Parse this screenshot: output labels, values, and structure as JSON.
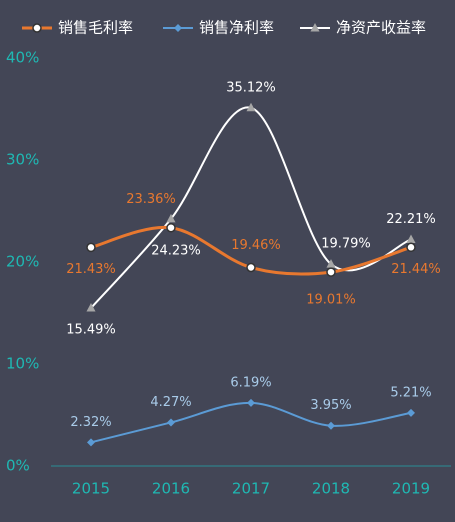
{
  "chart_data": {
    "type": "line",
    "categories": [
      "2015",
      "2016",
      "2017",
      "2018",
      "2019"
    ],
    "series": [
      {
        "name": "销售毛利率",
        "color": "#e8782f",
        "values": [
          21.43,
          23.36,
          19.46,
          19.01,
          21.44
        ],
        "value_labels": [
          "21.43%",
          "23.36%",
          "19.46%",
          "19.01%",
          "21.44%"
        ]
      },
      {
        "name": "销售净利率",
        "color": "#5b9bd5",
        "values": [
          2.32,
          4.27,
          6.19,
          3.95,
          5.21
        ],
        "value_labels": [
          "2.32%",
          "4.27%",
          "6.19%",
          "3.95%",
          "5.21%"
        ]
      },
      {
        "name": "净资产收益率",
        "color": "#ffffff",
        "values": [
          15.49,
          24.23,
          35.12,
          19.79,
          22.21
        ],
        "value_labels": [
          "15.49%",
          "24.23%",
          "35.12%",
          "19.79%",
          "22.21%"
        ]
      }
    ],
    "ylim": [
      0,
      40
    ],
    "yticks": [
      {
        "value": 0,
        "label": "0%"
      },
      {
        "value": 10,
        "label": "10%"
      },
      {
        "value": 20,
        "label": "20%"
      },
      {
        "value": 30,
        "label": "30%"
      },
      {
        "value": 40,
        "label": "40%"
      }
    ],
    "grid": false
  }
}
